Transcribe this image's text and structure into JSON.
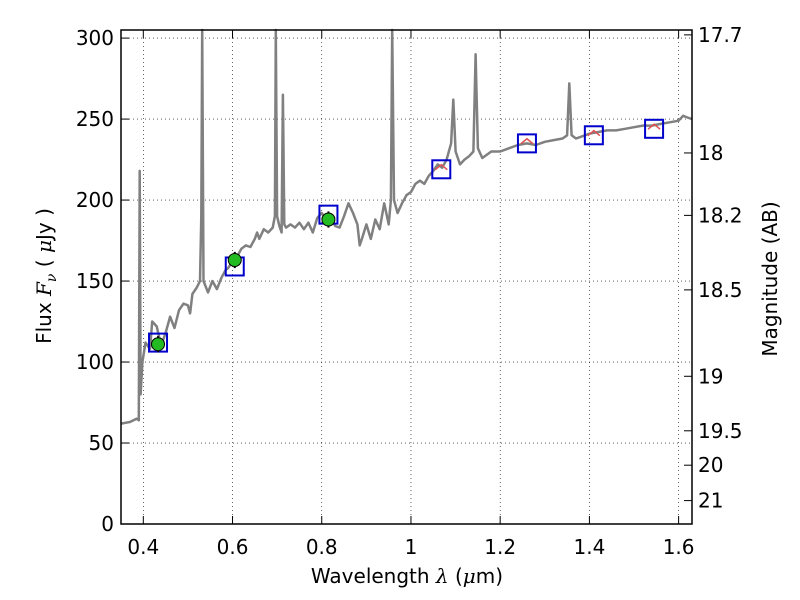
{
  "chart_data": {
    "type": "line",
    "title": "",
    "xlabel": {
      "prefix": "Wavelength  ",
      "symbol": "λ",
      "open": " (",
      "unit_greek": "μ",
      "unit": "m)"
    },
    "ylabel": {
      "prefix": "Flux  ",
      "symbol": "F",
      "sub": "ν",
      "mid": "  ( ",
      "unit_greek": "μ",
      "unit": "Jy )"
    },
    "y2label": "Magnitude (AB)",
    "xlim": [
      0.35,
      1.63
    ],
    "ylim": [
      0,
      305
    ],
    "grid": true,
    "x_ticks": [
      {
        "value": 0.4,
        "label": "0.4"
      },
      {
        "value": 0.6,
        "label": "0.6"
      },
      {
        "value": 0.8,
        "label": "0.8"
      },
      {
        "value": 1.0,
        "label": "1"
      },
      {
        "value": 1.2,
        "label": "1.2"
      },
      {
        "value": 1.4,
        "label": "1.4"
      },
      {
        "value": 1.6,
        "label": "1.6"
      }
    ],
    "y_ticks": [
      {
        "value": 0,
        "label": "0"
      },
      {
        "value": 50,
        "label": "50"
      },
      {
        "value": 100,
        "label": "100"
      },
      {
        "value": 150,
        "label": "150"
      },
      {
        "value": 200,
        "label": "200"
      },
      {
        "value": 250,
        "label": "250"
      },
      {
        "value": 300,
        "label": "300"
      }
    ],
    "y2_ticks": [
      {
        "value": 17.7,
        "label": "17.7"
      },
      {
        "value": 18,
        "label": "18"
      },
      {
        "value": 18.2,
        "label": "18.2"
      },
      {
        "value": 18.5,
        "label": "18.5"
      },
      {
        "value": 19,
        "label": "19"
      },
      {
        "value": 19.5,
        "label": "19.5"
      },
      {
        "value": 20,
        "label": "20"
      },
      {
        "value": 21,
        "label": "21"
      }
    ],
    "series": [
      {
        "color": "#808080",
        "points": [
          [
            0.35,
            62
          ],
          [
            0.37,
            63
          ],
          [
            0.385,
            65
          ],
          [
            0.39,
            64
          ],
          [
            0.392,
            218
          ],
          [
            0.394,
            80
          ],
          [
            0.398,
            100
          ],
          [
            0.405,
            112
          ],
          [
            0.415,
            108
          ],
          [
            0.42,
            125
          ],
          [
            0.43,
            122
          ],
          [
            0.44,
            110
          ],
          [
            0.45,
            118
          ],
          [
            0.46,
            128
          ],
          [
            0.47,
            121
          ],
          [
            0.48,
            132
          ],
          [
            0.49,
            136
          ],
          [
            0.5,
            135
          ],
          [
            0.505,
            130
          ],
          [
            0.51,
            142
          ],
          [
            0.52,
            146
          ],
          [
            0.527,
            150
          ],
          [
            0.53,
            190
          ],
          [
            0.532,
            305
          ],
          [
            0.535,
            150
          ],
          [
            0.545,
            143
          ],
          [
            0.555,
            150
          ],
          [
            0.565,
            145
          ],
          [
            0.575,
            152
          ],
          [
            0.585,
            157
          ],
          [
            0.59,
            158
          ],
          [
            0.6,
            162
          ],
          [
            0.61,
            165
          ],
          [
            0.62,
            170
          ],
          [
            0.63,
            172
          ],
          [
            0.64,
            171
          ],
          [
            0.65,
            176
          ],
          [
            0.655,
            180
          ],
          [
            0.66,
            176
          ],
          [
            0.67,
            182
          ],
          [
            0.68,
            180
          ],
          [
            0.69,
            183
          ],
          [
            0.695,
            190
          ],
          [
            0.697,
            305
          ],
          [
            0.7,
            190
          ],
          [
            0.705,
            184
          ],
          [
            0.71,
            180
          ],
          [
            0.713,
            265
          ],
          [
            0.716,
            185
          ],
          [
            0.72,
            183
          ],
          [
            0.73,
            185
          ],
          [
            0.74,
            183
          ],
          [
            0.75,
            186
          ],
          [
            0.76,
            182
          ],
          [
            0.77,
            186
          ],
          [
            0.78,
            180
          ],
          [
            0.79,
            189
          ],
          [
            0.8,
            192
          ],
          [
            0.81,
            188
          ],
          [
            0.82,
            190
          ],
          [
            0.83,
            184
          ],
          [
            0.84,
            183
          ],
          [
            0.85,
            190
          ],
          [
            0.86,
            198
          ],
          [
            0.87,
            192
          ],
          [
            0.88,
            185
          ],
          [
            0.885,
            172
          ],
          [
            0.89,
            176
          ],
          [
            0.9,
            185
          ],
          [
            0.91,
            176
          ],
          [
            0.92,
            188
          ],
          [
            0.93,
            182
          ],
          [
            0.94,
            198
          ],
          [
            0.95,
            185
          ],
          [
            0.955,
            200
          ],
          [
            0.958,
            305
          ],
          [
            0.962,
            200
          ],
          [
            0.97,
            192
          ],
          [
            0.98,
            198
          ],
          [
            0.99,
            203
          ],
          [
            1.0,
            205
          ],
          [
            1.01,
            210
          ],
          [
            1.02,
            212
          ],
          [
            1.03,
            210
          ],
          [
            1.04,
            215
          ],
          [
            1.05,
            218
          ],
          [
            1.06,
            222
          ],
          [
            1.07,
            220
          ],
          [
            1.08,
            225
          ],
          [
            1.09,
            235
          ],
          [
            1.095,
            262
          ],
          [
            1.1,
            230
          ],
          [
            1.11,
            222
          ],
          [
            1.12,
            225
          ],
          [
            1.13,
            227
          ],
          [
            1.14,
            230
          ],
          [
            1.145,
            290
          ],
          [
            1.15,
            232
          ],
          [
            1.16,
            226
          ],
          [
            1.17,
            228
          ],
          [
            1.18,
            230
          ],
          [
            1.2,
            230
          ],
          [
            1.22,
            232
          ],
          [
            1.24,
            234
          ],
          [
            1.26,
            235
          ],
          [
            1.28,
            234
          ],
          [
            1.3,
            236
          ],
          [
            1.32,
            237
          ],
          [
            1.34,
            238
          ],
          [
            1.35,
            240
          ],
          [
            1.355,
            272
          ],
          [
            1.36,
            240
          ],
          [
            1.37,
            238
          ],
          [
            1.38,
            239
          ],
          [
            1.4,
            241
          ],
          [
            1.42,
            242
          ],
          [
            1.44,
            243
          ],
          [
            1.46,
            243
          ],
          [
            1.48,
            244
          ],
          [
            1.5,
            245
          ],
          [
            1.52,
            246
          ],
          [
            1.54,
            246
          ],
          [
            1.56,
            247
          ],
          [
            1.58,
            248
          ],
          [
            1.6,
            249
          ],
          [
            1.61,
            252
          ],
          [
            1.62,
            251
          ],
          [
            1.63,
            250
          ]
        ]
      }
    ],
    "boxes": [
      {
        "x": 0.433,
        "y": 112
      },
      {
        "x": 0.605,
        "y": 159
      },
      {
        "x": 0.815,
        "y": 191
      },
      {
        "x": 1.068,
        "y": 219
      },
      {
        "x": 1.26,
        "y": 235
      },
      {
        "x": 1.41,
        "y": 240
      },
      {
        "x": 1.545,
        "y": 244
      }
    ],
    "box_color": "#0000cc",
    "model_points_color": "#e05050",
    "model_points": [
      {
        "x": 1.068,
        "y": 220
      },
      {
        "x": 1.26,
        "y": 236
      },
      {
        "x": 1.41,
        "y": 241
      },
      {
        "x": 1.545,
        "y": 245
      }
    ],
    "measurements": [
      {
        "x": 0.433,
        "y": 111,
        "err": 5
      },
      {
        "x": 0.605,
        "y": 163,
        "err": 5
      },
      {
        "x": 0.815,
        "y": 188,
        "err": 5
      }
    ],
    "measurement_color": "#22bb22"
  }
}
